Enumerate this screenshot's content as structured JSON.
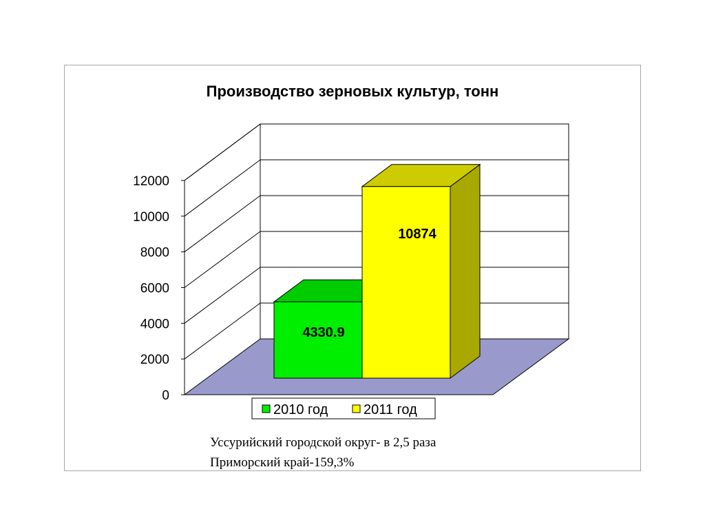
{
  "chart_data": {
    "type": "bar",
    "title": "Производство зерновых культур, тонн",
    "categories": [
      "2010 год",
      "2011 год"
    ],
    "values": [
      4330.9,
      10874
    ],
    "data_labels": [
      "4330.9",
      "10874"
    ],
    "ylim": [
      0,
      12000
    ],
    "yticks": [
      "0",
      "2000",
      "4000",
      "6000",
      "8000",
      "10000",
      "12000"
    ],
    "grid": true,
    "three_d": true,
    "legend_position": "bottom",
    "colors": [
      "#00ee00",
      "#ffff00"
    ]
  },
  "note": {
    "line1": "Уссурийский городской округ- в 2,5 раза",
    "line2": "Приморский край-159,3%"
  },
  "colors": {
    "floor": "#9999cc",
    "grid": "#000000"
  }
}
